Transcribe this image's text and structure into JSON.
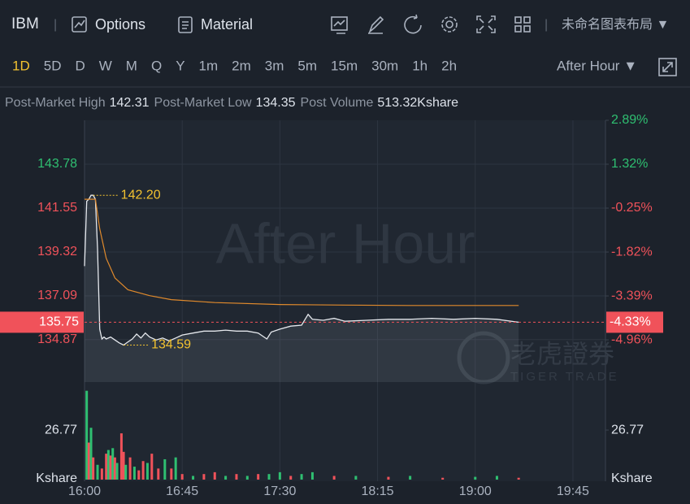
{
  "toolbar": {
    "symbol": "IBM",
    "options": "Options",
    "material": "Material",
    "layout": "未命名图表布局 ▼"
  },
  "periods": {
    "items": [
      "1D",
      "5D",
      "D",
      "W",
      "M",
      "Q",
      "Y",
      "1m",
      "2m",
      "3m",
      "5m",
      "15m",
      "30m",
      "1h",
      "2h"
    ],
    "active": 0,
    "session": "After Hour ▼"
  },
  "stats": [
    {
      "label": "Post-Market High",
      "value": 142.31
    },
    {
      "label": "Post-Market Low",
      "value": 134.35
    },
    {
      "label": "Post Volume",
      "value": "513.32Kshare"
    }
  ],
  "chart_data": {
    "type": "line",
    "watermark": "After Hour",
    "logo": "老虎證券",
    "logo_sub": "TIGER TRADE",
    "xticks": [
      "16:00",
      "16:45",
      "17:30",
      "18:15",
      "19:00",
      "19:45"
    ],
    "xlim": [
      "16:00",
      "20:00"
    ],
    "ylim": [
      132.71,
      146.01
    ],
    "yticks": [
      143.78,
      141.55,
      139.32,
      137.09,
      134.87
    ],
    "ytick_colors": [
      "#2fbf71",
      "#f0525a",
      "#f0525a",
      "#f0525a",
      "#f0525a"
    ],
    "y2lim": [
      -6.47,
      2.89
    ],
    "y2ticks": [
      {
        "value": 2.89,
        "label": "2.89%"
      },
      {
        "value": 1.32,
        "label": "1.32%"
      },
      {
        "value": -0.25,
        "label": "-0.25%"
      },
      {
        "value": -1.82,
        "label": "-1.82%"
      },
      {
        "value": -3.39,
        "label": "-3.39%"
      },
      {
        "value": -4.96,
        "label": "-4.96%"
      }
    ],
    "up_color": "#2fbf71",
    "down_color": "#f0525a",
    "series": [
      {
        "color": "#e6e9ee",
        "x": [
          "16:00",
          "16:01",
          "16:02",
          "16:03",
          "16:04",
          "16:05",
          "16:06",
          "16:07",
          "16:08",
          "16:09",
          "16:10",
          "16:12",
          "16:14",
          "16:16",
          "16:18",
          "16:20",
          "16:22",
          "16:24",
          "16:26",
          "16:28",
          "16:30",
          "16:33",
          "16:36",
          "16:39",
          "16:42",
          "16:45",
          "16:50",
          "16:55",
          "17:00",
          "17:05",
          "17:10",
          "17:15",
          "17:20",
          "17:24",
          "17:26",
          "17:30",
          "17:35",
          "17:40",
          "17:43",
          "17:45",
          "17:50",
          "17:55",
          "18:00",
          "18:10",
          "18:20",
          "18:30",
          "18:40",
          "18:50",
          "19:00",
          "19:10",
          "19:20"
        ],
        "values": [
          138.6,
          141.9,
          142.0,
          142.2,
          142.2,
          142.0,
          139.5,
          135.4,
          134.9,
          135.0,
          134.9,
          135.0,
          134.85,
          134.7,
          134.59,
          134.75,
          134.9,
          135.15,
          134.95,
          135.2,
          135.0,
          134.85,
          134.95,
          134.8,
          134.95,
          135.1,
          135.2,
          135.3,
          135.3,
          135.35,
          135.3,
          135.3,
          135.2,
          134.9,
          135.25,
          135.4,
          135.55,
          135.6,
          136.15,
          135.9,
          135.85,
          135.95,
          135.8,
          135.85,
          135.9,
          135.9,
          135.95,
          135.9,
          135.95,
          135.9,
          135.75
        ]
      },
      {
        "color": "#e08a2c",
        "x": [
          "16:00",
          "16:05",
          "16:07",
          "16:10",
          "16:14",
          "16:20",
          "16:30",
          "16:40",
          "17:00",
          "17:30",
          "18:00",
          "18:30",
          "19:00",
          "19:20"
        ],
        "values": [
          142.0,
          142.0,
          140.5,
          139.0,
          138.0,
          137.4,
          137.1,
          136.9,
          136.75,
          136.65,
          136.62,
          136.6,
          136.6,
          136.6
        ]
      }
    ],
    "annotations": [
      {
        "x": "16:04",
        "value": 142.2,
        "label": "142.20"
      },
      {
        "x": "16:18",
        "value": 134.59,
        "label": "134.59"
      }
    ],
    "last": {
      "value": 135.75,
      "change_label": "-4.33%",
      "color": "#f0525a"
    },
    "volume": {
      "unit": "Kshare",
      "ylim": [
        0,
        52.7
      ],
      "ticks": [
        26.77
      ],
      "x": [
        "16:01",
        "16:02",
        "16:03",
        "16:04",
        "16:06",
        "16:08",
        "16:10",
        "16:11",
        "16:12",
        "16:13",
        "16:14",
        "16:15",
        "16:17",
        "16:18",
        "16:19",
        "16:21",
        "16:23",
        "16:25",
        "16:27",
        "16:29",
        "16:31",
        "16:34",
        "16:37",
        "16:40",
        "16:42",
        "16:45",
        "16:50",
        "16:55",
        "17:00",
        "17:05",
        "17:10",
        "17:15",
        "17:20",
        "17:25",
        "17:30",
        "17:35",
        "17:40",
        "17:45",
        "17:55",
        "18:05",
        "18:20",
        "18:30",
        "18:45",
        "19:00",
        "19:10",
        "19:20"
      ],
      "values": [
        48,
        20,
        28,
        12,
        8,
        6,
        14,
        16,
        13,
        17,
        12,
        9,
        25,
        15,
        8,
        12,
        7,
        5,
        10,
        9,
        14,
        6,
        11,
        6,
        12,
        3,
        2,
        3,
        4,
        2,
        3,
        2,
        3,
        3,
        4,
        2,
        3,
        4,
        2,
        2,
        1.5,
        2,
        1,
        1.5,
        2,
        1
      ],
      "colors": [
        "#2fbf71",
        "#f0525a",
        "#2fbf71",
        "#f0525a",
        "#2fbf71",
        "#f0525a",
        "#f0525a",
        "#2fbf71",
        "#f0525a",
        "#2fbf71",
        "#f0525a",
        "#2fbf71",
        "#f0525a",
        "#f0525a",
        "#2fbf71",
        "#f0525a",
        "#2fbf71",
        "#f0525a",
        "#f0525a",
        "#2fbf71",
        "#f0525a",
        "#f0525a",
        "#2fbf71",
        "#f0525a",
        "#2fbf71",
        "#f0525a",
        "#2fbf71",
        "#f0525a",
        "#f0525a",
        "#2fbf71",
        "#f0525a",
        "#2fbf71",
        "#f0525a",
        "#2fbf71",
        "#2fbf71",
        "#f0525a",
        "#2fbf71",
        "#2fbf71",
        "#f0525a",
        "#2fbf71",
        "#f0525a",
        "#2fbf71",
        "#f0525a",
        "#2fbf71",
        "#2fbf71",
        "#f0525a"
      ]
    }
  }
}
